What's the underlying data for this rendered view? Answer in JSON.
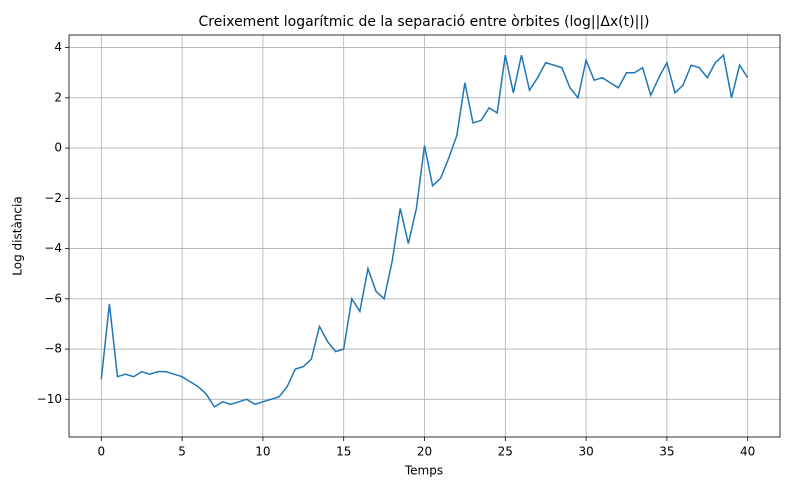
{
  "chart_data": {
    "type": "line",
    "title": "Creixement logarítmic de la separació entre òrbites (log||Δx(t)||)",
    "x_label": "Temps",
    "y_label": "Log distància",
    "x": [
      0,
      0.5,
      1,
      1.5,
      2,
      2.5,
      3,
      3.5,
      4,
      4.5,
      5,
      5.5,
      6,
      6.5,
      7,
      7.5,
      8,
      8.5,
      9,
      9.5,
      10,
      10.5,
      11,
      11.5,
      12,
      12.5,
      13,
      13.5,
      14,
      14.5,
      15,
      15.5,
      16,
      16.5,
      17,
      17.5,
      18,
      18.5,
      19,
      19.5,
      20,
      20.5,
      21,
      21.5,
      22,
      22.5,
      23,
      23.5,
      24,
      24.5,
      25,
      25.5,
      26,
      26.5,
      27,
      27.5,
      28,
      28.5,
      29,
      29.5,
      30,
      30.5,
      31,
      31.5,
      32,
      32.5,
      33,
      33.5,
      34,
      34.5,
      35,
      35.5,
      36,
      36.5,
      37,
      37.5,
      38,
      38.5,
      39,
      39.5,
      40
    ],
    "series": [
      {
        "name": "log||Δx(t)||",
        "color": "#1f77b4",
        "values": [
          -9.2,
          -6.2,
          -9.1,
          -9.0,
          -9.1,
          -8.9,
          -9.0,
          -8.9,
          -8.9,
          -9.0,
          -9.1,
          -9.3,
          -9.5,
          -9.8,
          -10.3,
          -10.1,
          -10.2,
          -10.1,
          -10.0,
          -10.2,
          -10.1,
          -10.0,
          -9.9,
          -9.5,
          -8.8,
          -8.7,
          -8.4,
          -7.1,
          -7.7,
          -8.1,
          -8.0,
          -6.0,
          -6.5,
          -4.8,
          -5.7,
          -6.0,
          -4.5,
          -2.4,
          -3.8,
          -2.4,
          0.1,
          -1.5,
          -1.2,
          -0.4,
          0.5,
          2.6,
          1.0,
          1.1,
          1.6,
          1.4,
          3.7,
          2.2,
          3.7,
          2.3,
          2.8,
          3.4,
          3.3,
          3.2,
          2.4,
          2.0,
          3.5,
          2.7,
          2.8,
          2.6,
          2.4,
          3.0,
          3.0,
          3.2,
          2.1,
          2.8,
          3.4,
          2.2,
          2.5,
          3.3,
          3.2,
          2.8,
          3.4,
          3.7,
          2.0,
          3.3,
          2.8
        ]
      }
    ],
    "xlim": [
      -2,
      42
    ],
    "ylim": [
      -11.5,
      4.5
    ],
    "xticks": [
      0,
      5,
      10,
      15,
      20,
      25,
      30,
      35,
      40
    ],
    "yticks": [
      {
        "value": -10,
        "label": "−10"
      },
      {
        "value": -8,
        "label": "−8"
      },
      {
        "value": -6,
        "label": "−6"
      },
      {
        "value": -4,
        "label": "−4"
      },
      {
        "value": -2,
        "label": "−2"
      },
      0,
      2,
      4
    ],
    "grid": true
  }
}
